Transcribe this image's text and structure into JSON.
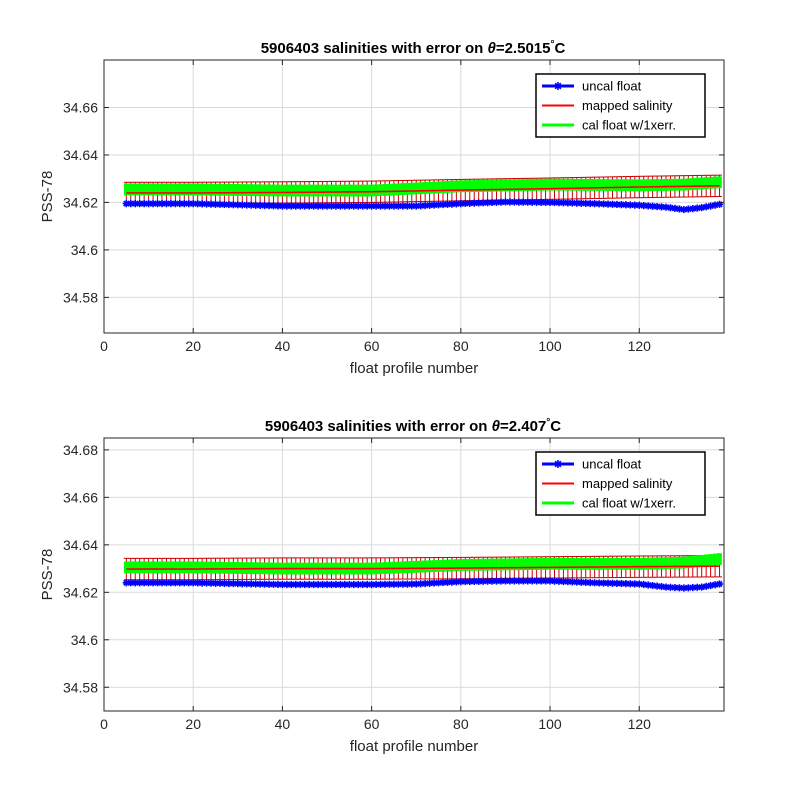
{
  "figure": {
    "panels": [
      {
        "title_prefix": "5906403 salinities with error on ",
        "title_theta": "θ",
        "title_value": "=2.5015",
        "title_degree": "°",
        "title_unit": "C"
      },
      {
        "title_prefix": "5906403 salinities with error on ",
        "title_theta": "θ",
        "title_value": "=2.407",
        "title_degree": "°",
        "title_unit": "C"
      }
    ]
  },
  "colors": {
    "uncal": "#0000ff",
    "mapped": "#ff0000",
    "cal": "#00ff00",
    "errorbar": "#cc0000",
    "grid": "#d9d9d9",
    "axis": "#262626"
  },
  "chart_data": [
    {
      "type": "line",
      "title": "5906403 salinities with error on θ=2.5015°C",
      "xlabel": "float profile number",
      "ylabel": "PSS-78",
      "xlim": [
        0,
        139
      ],
      "ylim": [
        34.565,
        34.68
      ],
      "xticks": [
        0,
        20,
        40,
        60,
        80,
        100,
        120
      ],
      "xtick_labels": [
        "0",
        "20",
        "40",
        "60",
        "80",
        "100",
        "120"
      ],
      "yticks": [
        34.58,
        34.6,
        34.62,
        34.64,
        34.66
      ],
      "ytick_labels": [
        "34.58",
        "34.6",
        "34.62",
        "34.64",
        "34.66"
      ],
      "grid": true,
      "legend_position": "top-right",
      "x_range": [
        5,
        138
      ],
      "series": [
        {
          "name": "uncal float",
          "key": "uncal",
          "marker": "star",
          "anchors_x": [
            5,
            20,
            40,
            60,
            70,
            80,
            90,
            100,
            110,
            120,
            126,
            130,
            134,
            138
          ],
          "anchors_y": [
            34.6195,
            34.6195,
            34.6185,
            34.6185,
            34.6185,
            34.6195,
            34.6202,
            34.62,
            34.6195,
            34.6188,
            34.618,
            34.617,
            34.6178,
            34.6192
          ]
        },
        {
          "name": "mapped salinity",
          "key": "mapped",
          "anchors_x": [
            5,
            20,
            40,
            60,
            80,
            100,
            120,
            138
          ],
          "anchors_y": [
            34.624,
            34.624,
            34.6242,
            34.6245,
            34.6252,
            34.6258,
            34.6265,
            34.627
          ],
          "error": 0.0045
        },
        {
          "name": "cal float w/1xerr.",
          "key": "cal",
          "anchors_x": [
            5,
            20,
            40,
            60,
            80,
            100,
            120,
            130,
            138
          ],
          "anchors_y": [
            34.6255,
            34.6255,
            34.625,
            34.625,
            34.6268,
            34.6275,
            34.6272,
            34.6275,
            34.6285
          ],
          "error": 0.0025
        }
      ]
    },
    {
      "type": "line",
      "title": "5906403 salinities with error on θ=2.407°C",
      "xlabel": "float profile number",
      "ylabel": "PSS-78",
      "xlim": [
        0,
        139
      ],
      "ylim": [
        34.57,
        34.685
      ],
      "xticks": [
        0,
        20,
        40,
        60,
        80,
        100,
        120
      ],
      "xtick_labels": [
        "0",
        "20",
        "40",
        "60",
        "80",
        "100",
        "120"
      ],
      "yticks": [
        34.58,
        34.6,
        34.62,
        34.64,
        34.66,
        34.68
      ],
      "ytick_labels": [
        "34.58",
        "34.6",
        "34.62",
        "34.64",
        "34.66",
        "34.68"
      ],
      "grid": true,
      "legend_position": "top-right",
      "x_range": [
        5,
        138
      ],
      "series": [
        {
          "name": "uncal float",
          "key": "uncal",
          "marker": "star",
          "anchors_x": [
            5,
            20,
            40,
            60,
            70,
            80,
            90,
            100,
            110,
            120,
            126,
            130,
            134,
            138
          ],
          "anchors_y": [
            34.624,
            34.624,
            34.6233,
            34.6233,
            34.6235,
            34.6245,
            34.6248,
            34.6248,
            34.624,
            34.6235,
            34.6222,
            34.6218,
            34.6222,
            34.6235
          ]
        },
        {
          "name": "mapped salinity",
          "key": "mapped",
          "anchors_x": [
            5,
            20,
            40,
            60,
            80,
            100,
            120,
            138
          ],
          "anchors_y": [
            34.6298,
            34.6298,
            34.63,
            34.63,
            34.6302,
            34.6305,
            34.6308,
            34.631
          ],
          "error": 0.0045
        },
        {
          "name": "cal float w/1xerr.",
          "key": "cal",
          "anchors_x": [
            5,
            20,
            40,
            60,
            80,
            100,
            120,
            130,
            138
          ],
          "anchors_y": [
            34.6305,
            34.6305,
            34.63,
            34.63,
            34.6315,
            34.632,
            34.632,
            34.6325,
            34.634
          ],
          "error": 0.0025
        }
      ]
    }
  ]
}
